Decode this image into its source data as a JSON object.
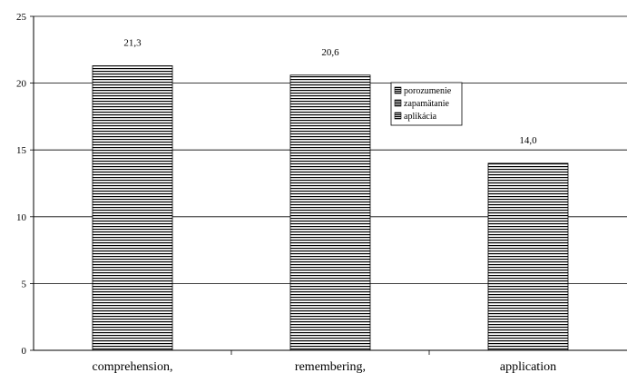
{
  "chart_data": {
    "type": "bar",
    "categories": [
      "comprehension,",
      "remembering,",
      "application"
    ],
    "values": [
      21.3,
      20.6,
      14.0
    ],
    "value_labels": [
      "21,3",
      "20,6",
      "14,0"
    ],
    "ylim": [
      0,
      25
    ],
    "yticks": [
      "0",
      "5",
      "10",
      "15",
      "20",
      "25"
    ],
    "grid": true,
    "legend": {
      "placement": "center",
      "entries": [
        "porozumenie",
        "zapamätanie",
        "aplikácia"
      ]
    },
    "bar_fill": "horizontal-stripes",
    "colors": {
      "bar_stripe": "#000000",
      "bar_bg": "#ffffff",
      "grid": "#000000"
    }
  }
}
